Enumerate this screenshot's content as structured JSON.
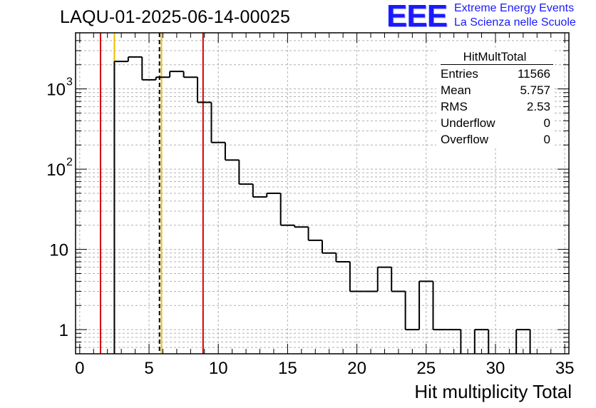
{
  "title": "LAQU-01-2025-06-14-00025",
  "logo": {
    "mark": "EEE",
    "line1": "Extreme Energy Events",
    "line2": "La Scienza nelle Scuole",
    "color": "#1a1aff"
  },
  "stats": {
    "name": "HitMultTotal",
    "rows": [
      {
        "key": "Entries",
        "value": "11566"
      },
      {
        "key": "Mean",
        "value": "5.757"
      },
      {
        "key": "RMS",
        "value": "2.53"
      },
      {
        "key": "Underflow",
        "value": "0"
      },
      {
        "key": "Overflow",
        "value": "0"
      }
    ]
  },
  "chart_data": {
    "type": "histogram",
    "title": "LAQU-01-2025-06-14-00025",
    "xlabel": "Hit multiplicity Total",
    "ylabel": "",
    "xlim": [
      -0.3,
      35.3
    ],
    "ylim": [
      0.5,
      5000
    ],
    "yscale": "log",
    "grid": true,
    "xticks": [
      0,
      5,
      10,
      15,
      20,
      25,
      30,
      35
    ],
    "yticks": [
      {
        "value": 1,
        "label": "1"
      },
      {
        "value": 10,
        "label": "10"
      },
      {
        "value": 100,
        "label": "10",
        "exp": "2"
      },
      {
        "value": 1000,
        "label": "10",
        "exp": "3"
      }
    ],
    "bin_edges": [
      0.5,
      1.5,
      2.5,
      3.5,
      4.5,
      5.5,
      6.5,
      7.5,
      8.5,
      9.5,
      10.5,
      11.5,
      12.5,
      13.5,
      14.5,
      15.5,
      16.5,
      17.5,
      18.5,
      19.5,
      20.5,
      21.5,
      22.5,
      23.5,
      24.5,
      25.5,
      26.5,
      27.5,
      28.5,
      29.5,
      30.5,
      31.5,
      32.5,
      33.5,
      34.5
    ],
    "counts": [
      0,
      0,
      2200,
      2500,
      1300,
      1400,
      1650,
      1400,
      680,
      215,
      130,
      65,
      45,
      50,
      20,
      19,
      13,
      9,
      7,
      3,
      3,
      6,
      3,
      1,
      4,
      1,
      1,
      0,
      1,
      0,
      0,
      1,
      0,
      0
    ],
    "vlines": [
      {
        "x": 1.5,
        "color": "#d40000",
        "style": "solid"
      },
      {
        "x": 2.5,
        "color": "#e8c000",
        "style": "solid"
      },
      {
        "x": 5.757,
        "color": "#000000",
        "style": "dashed"
      },
      {
        "x": 5.9,
        "color": "#e8c000",
        "style": "solid"
      },
      {
        "x": 8.9,
        "color": "#d40000",
        "style": "solid"
      }
    ]
  }
}
